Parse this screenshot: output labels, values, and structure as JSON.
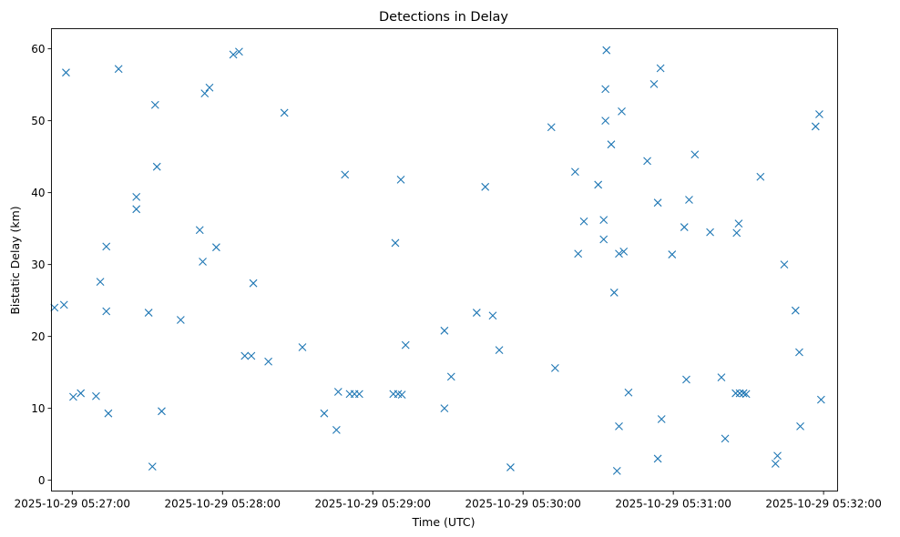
{
  "chart_data": {
    "type": "scatter",
    "title": "Detections in Delay",
    "xlabel": "Time (UTC)",
    "ylabel": "Bistatic Delay (km)",
    "marker": "x",
    "color": "#1f77b4",
    "x_unit": "seconds after 2025-10-29 05:27:00",
    "xlim": [
      -8.3,
      305.6
    ],
    "ylim": [
      -1.5,
      62.8
    ],
    "x_ticks": [
      {
        "value": 0,
        "label": "2025-10-29 05:27:00"
      },
      {
        "value": 60,
        "label": "2025-10-29 05:28:00"
      },
      {
        "value": 120,
        "label": "2025-10-29 05:29:00"
      },
      {
        "value": 180,
        "label": "2025-10-29 05:30:00"
      },
      {
        "value": 240,
        "label": "2025-10-29 05:31:00"
      },
      {
        "value": 300,
        "label": "2025-10-29 05:32:00"
      }
    ],
    "y_ticks": [
      {
        "value": 0,
        "label": "0"
      },
      {
        "value": 10,
        "label": "10"
      },
      {
        "value": 20,
        "label": "20"
      },
      {
        "value": 30,
        "label": "30"
      },
      {
        "value": 40,
        "label": "40"
      },
      {
        "value": 50,
        "label": "50"
      },
      {
        "value": 60,
        "label": "60"
      }
    ],
    "points": [
      [
        -7.1,
        24.0
      ],
      [
        -3.3,
        24.4
      ],
      [
        -2.5,
        56.7
      ],
      [
        0.4,
        11.6
      ],
      [
        3.4,
        12.1
      ],
      [
        9.5,
        11.7
      ],
      [
        11.2,
        27.6
      ],
      [
        13.6,
        32.5
      ],
      [
        13.6,
        23.5
      ],
      [
        14.4,
        9.3
      ],
      [
        18.5,
        57.2
      ],
      [
        25.6,
        39.4
      ],
      [
        25.6,
        37.7
      ],
      [
        30.5,
        23.3
      ],
      [
        32.0,
        1.9
      ],
      [
        33.1,
        52.2
      ],
      [
        33.8,
        43.6
      ],
      [
        35.7,
        9.6
      ],
      [
        43.3,
        22.3
      ],
      [
        50.9,
        34.8
      ],
      [
        52.1,
        30.4
      ],
      [
        52.9,
        53.8
      ],
      [
        54.8,
        54.6
      ],
      [
        57.5,
        32.4
      ],
      [
        64.3,
        59.2
      ],
      [
        66.6,
        59.6
      ],
      [
        68.9,
        17.3
      ],
      [
        71.5,
        17.3
      ],
      [
        72.3,
        27.4
      ],
      [
        78.3,
        16.5
      ],
      [
        84.7,
        51.1
      ],
      [
        91.9,
        18.5
      ],
      [
        100.6,
        9.3
      ],
      [
        105.5,
        7.0
      ],
      [
        106.2,
        12.3
      ],
      [
        108.9,
        42.5
      ],
      [
        110.8,
        12.0
      ],
      [
        112.7,
        12.0
      ],
      [
        114.6,
        12.0
      ],
      [
        128.2,
        12.0
      ],
      [
        129.0,
        33.0
      ],
      [
        130.1,
        12.0
      ],
      [
        131.2,
        41.8
      ],
      [
        131.6,
        11.9
      ],
      [
        133.1,
        18.8
      ],
      [
        148.6,
        10.0
      ],
      [
        148.6,
        20.8
      ],
      [
        151.3,
        14.4
      ],
      [
        161.5,
        23.3
      ],
      [
        164.9,
        40.8
      ],
      [
        167.9,
        22.9
      ],
      [
        170.5,
        18.1
      ],
      [
        175.0,
        1.8
      ],
      [
        191.3,
        49.1
      ],
      [
        192.8,
        15.6
      ],
      [
        200.8,
        42.9
      ],
      [
        202.0,
        31.5
      ],
      [
        204.3,
        36.0
      ],
      [
        210.0,
        41.1
      ],
      [
        212.2,
        36.2
      ],
      [
        212.2,
        33.5
      ],
      [
        212.9,
        54.4
      ],
      [
        212.9,
        50.0
      ],
      [
        213.3,
        59.8
      ],
      [
        215.2,
        46.7
      ],
      [
        216.4,
        26.1
      ],
      [
        217.5,
        1.3
      ],
      [
        218.3,
        7.5
      ],
      [
        218.3,
        31.5
      ],
      [
        219.4,
        51.3
      ],
      [
        220.2,
        31.8
      ],
      [
        222.1,
        12.2
      ],
      [
        229.6,
        44.4
      ],
      [
        232.3,
        55.1
      ],
      [
        233.8,
        38.6
      ],
      [
        233.8,
        3.0
      ],
      [
        234.9,
        57.3
      ],
      [
        235.3,
        8.5
      ],
      [
        239.5,
        31.4
      ],
      [
        244.4,
        35.2
      ],
      [
        245.2,
        14.0
      ],
      [
        246.3,
        39.0
      ],
      [
        248.6,
        45.3
      ],
      [
        254.7,
        34.5
      ],
      [
        259.2,
        14.3
      ],
      [
        260.7,
        5.8
      ],
      [
        264.9,
        12.1
      ],
      [
        265.3,
        34.4
      ],
      [
        266.1,
        35.7
      ],
      [
        266.5,
        12.1
      ],
      [
        268.0,
        12.1
      ],
      [
        269.1,
        12.0
      ],
      [
        274.8,
        42.2
      ],
      [
        280.8,
        2.3
      ],
      [
        281.6,
        3.4
      ],
      [
        284.3,
        30.0
      ],
      [
        288.8,
        23.6
      ],
      [
        290.3,
        17.8
      ],
      [
        290.7,
        7.5
      ],
      [
        296.8,
        49.2
      ],
      [
        298.3,
        50.9
      ],
      [
        299.0,
        11.2
      ]
    ]
  }
}
